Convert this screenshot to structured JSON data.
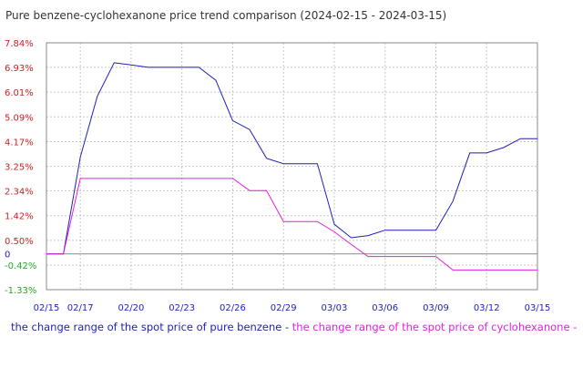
{
  "chart_data": {
    "type": "line",
    "title": "Pure benzene-cyclohexanone price trend comparison (2024-02-15 - 2024-03-15)",
    "xlabel": "",
    "ylabel": "",
    "x": [
      "2024-02-15",
      "2024-02-16",
      "2024-02-17",
      "2024-02-18",
      "2024-02-19",
      "2024-02-20",
      "2024-02-21",
      "2024-02-22",
      "2024-02-23",
      "2024-02-24",
      "2024-02-25",
      "2024-02-26",
      "2024-02-27",
      "2024-02-28",
      "2024-02-29",
      "2024-03-01",
      "2024-03-02",
      "2024-03-03",
      "2024-03-04",
      "2024-03-05",
      "2024-03-06",
      "2024-03-07",
      "2024-03-08",
      "2024-03-09",
      "2024-03-10",
      "2024-03-11",
      "2024-03-12",
      "2024-03-13",
      "2024-03-14",
      "2024-03-15"
    ],
    "x_tick_labels": [
      "02/15",
      "02/17",
      "02/20",
      "02/23",
      "02/26",
      "02/29",
      "03/03",
      "03/06",
      "03/09",
      "03/12",
      "03/15"
    ],
    "x_tick_dates": [
      "2024-02-15",
      "2024-02-17",
      "2024-02-20",
      "2024-02-23",
      "2024-02-26",
      "2024-02-29",
      "2024-03-03",
      "2024-03-06",
      "2024-03-09",
      "2024-03-12",
      "2024-03-15"
    ],
    "y_ticks": [
      -1.33,
      -0.42,
      0,
      0.5,
      1.42,
      2.34,
      3.25,
      4.17,
      5.09,
      6.01,
      6.93,
      7.84
    ],
    "y_tick_labels": [
      "-1.33%",
      "-0.42%",
      "0",
      "0.50%",
      "1.42%",
      "2.34%",
      "3.25%",
      "4.17%",
      "5.09%",
      "6.01%",
      "6.93%",
      "7.84%"
    ],
    "ylim": [
      -1.33,
      7.84
    ],
    "grid": true,
    "legend_position": "bottom",
    "series": [
      {
        "name": "the change range of the spot price of pure benzene",
        "color": "#1f1fb4",
        "values": [
          0,
          0,
          3.6,
          5.85,
          7.1,
          7.02,
          6.93,
          6.93,
          6.93,
          6.93,
          6.45,
          4.95,
          4.62,
          3.55,
          3.35,
          3.35,
          3.35,
          1.1,
          0.6,
          0.68,
          0.88,
          0.88,
          0.88,
          0.88,
          1.95,
          3.75,
          3.75,
          3.95,
          4.28,
          4.28
        ]
      },
      {
        "name": "the change range of the spot price of cyclohexanone",
        "color": "#e51ee5",
        "values": [
          0,
          0,
          2.8,
          2.8,
          2.8,
          2.8,
          2.8,
          2.8,
          2.8,
          2.8,
          2.8,
          2.8,
          2.35,
          2.35,
          1.2,
          1.2,
          1.2,
          0.82,
          0.35,
          -0.1,
          -0.1,
          -0.1,
          -0.1,
          -0.1,
          -0.6,
          -0.6,
          -0.6,
          -0.6,
          -0.6,
          -0.6
        ]
      }
    ],
    "legend_separator": " - ",
    "colors": {
      "positive_tick": "#cc2222",
      "negative_tick": "#22aa22",
      "zero_tick": "#1f1fb4",
      "x_tick": "#1f1fb4",
      "grid": "#c8c8c8",
      "axis": "#8a8a8a"
    }
  }
}
